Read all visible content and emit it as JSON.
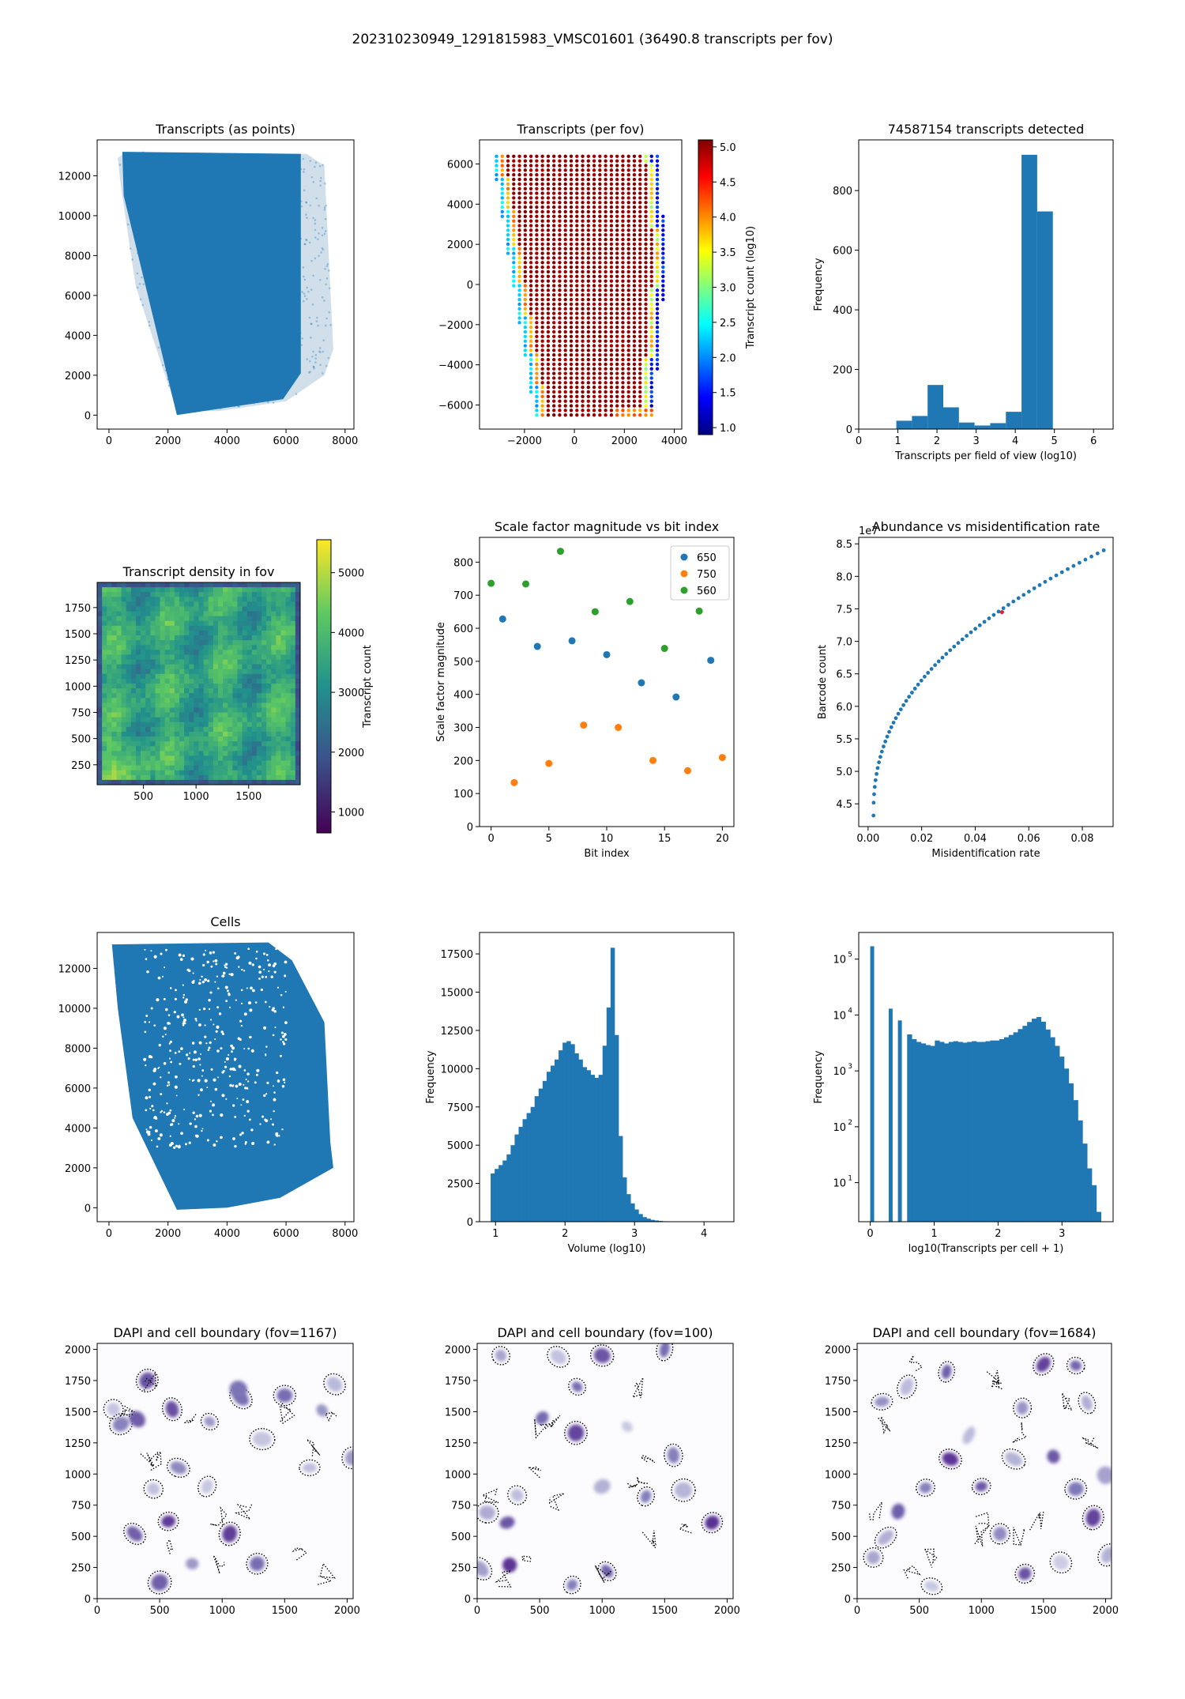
{
  "suptitle": "202310230949_1291815983_VMSC01601 (36490.8 transcripts per fov)",
  "colors": {
    "blue": "#1f77b4",
    "orange": "#ff7f0e",
    "green": "#2ca02c",
    "red": "#d62728",
    "viridis": [
      "#440154",
      "#3b528b",
      "#21918c",
      "#5ec962",
      "#fde725"
    ],
    "jet": [
      "#00007f",
      "#0000ff",
      "#007fff",
      "#00ffff",
      "#7fff7f",
      "#ffff00",
      "#ff7f00",
      "#ff0000",
      "#7f0000"
    ],
    "purples": [
      "#fcfbfd",
      "#efedf5",
      "#dadaeb",
      "#bcbddc",
      "#9e9ac8",
      "#807dba",
      "#6a51a3",
      "#54278f",
      "#3f007d"
    ]
  },
  "chart_data": [
    {
      "id": "points",
      "type": "scatter",
      "title": "Transcripts (as points)",
      "xlabel": "",
      "ylabel": "",
      "xlim": [
        -400,
        8300
      ],
      "ylim": [
        -700,
        13800
      ],
      "xticks": [
        0,
        2000,
        4000,
        6000,
        8000
      ],
      "yticks": [
        0,
        2000,
        4000,
        6000,
        8000,
        10000,
        12000
      ],
      "polygon": [
        [
          300,
          12900
        ],
        [
          600,
          13200
        ],
        [
          6700,
          13100
        ],
        [
          7300,
          12500
        ],
        [
          7600,
          3300
        ],
        [
          7300,
          2000
        ],
        [
          6000,
          700
        ],
        [
          3700,
          200
        ],
        [
          2300,
          200
        ],
        [
          900,
          6500
        ],
        [
          400,
          11500
        ]
      ],
      "dense_polygon": [
        [
          450,
          13200
        ],
        [
          6500,
          13100
        ],
        [
          6500,
          2100
        ],
        [
          5900,
          800
        ],
        [
          2300,
          0
        ],
        [
          500,
          11000
        ]
      ]
    },
    {
      "id": "perfov",
      "type": "scatter",
      "title": "Transcripts (per fov)",
      "xlabel": "",
      "ylabel": "",
      "colorbar_label": "Transcript count (log10)",
      "xlim": [
        -3800,
        4300
      ],
      "ylim": [
        -7200,
        7200
      ],
      "xticks": [
        -2000,
        0,
        2000,
        4000
      ],
      "yticks": [
        -6000,
        -4000,
        -2000,
        0,
        2000,
        4000,
        6000
      ],
      "clim": [
        0.9,
        5.1
      ],
      "cticks": [
        1.0,
        1.5,
        2.0,
        2.5,
        3.0,
        3.5,
        4.0,
        4.5,
        5.0
      ]
    },
    {
      "id": "hist_fov",
      "type": "bar",
      "title": "74587154 transcripts detected",
      "xlabel": "Transcripts per field of view (log10)",
      "ylabel": "Frequency",
      "xlim": [
        0,
        6.5
      ],
      "ylim": [
        0,
        970
      ],
      "xticks": [
        0,
        1,
        2,
        3,
        4,
        5,
        6
      ],
      "yticks": [
        0,
        200,
        400,
        600,
        800
      ],
      "bin_edges": [
        0.96,
        1.36,
        1.76,
        2.16,
        2.56,
        2.96,
        3.36,
        3.76,
        4.16,
        4.56,
        4.96
      ],
      "values": [
        28,
        44,
        148,
        73,
        22,
        12,
        20,
        58,
        920,
        730
      ]
    },
    {
      "id": "density",
      "type": "heatmap",
      "title": "Transcript density in fov",
      "xlabel": "",
      "ylabel": "",
      "colorbar_label": "Transcript count",
      "xlim": [
        60,
        1990
      ],
      "ylim": [
        60,
        1990
      ],
      "xticks": [
        500,
        1000,
        1500
      ],
      "yticks": [
        250,
        500,
        750,
        1000,
        1250,
        1500,
        1750
      ],
      "clim": [
        650,
        5550
      ],
      "cticks": [
        1000,
        2000,
        3000,
        4000,
        5000
      ]
    },
    {
      "id": "scale",
      "type": "scatter",
      "title": "Scale factor magnitude vs bit index",
      "xlabel": "Bit index",
      "ylabel": "Scale factor magnitude",
      "xlim": [
        -1,
        21
      ],
      "ylim": [
        0,
        875
      ],
      "xticks": [
        0,
        5,
        10,
        15,
        20
      ],
      "yticks": [
        0,
        100,
        200,
        300,
        400,
        500,
        600,
        700,
        800
      ],
      "legend_loc": "upper right",
      "series": [
        {
          "name": "650",
          "x": [
            1,
            4,
            7,
            10,
            13,
            16,
            19
          ],
          "y": [
            628,
            545,
            562,
            520,
            435,
            392,
            503
          ]
        },
        {
          "name": "750",
          "x": [
            2,
            5,
            8,
            11,
            14,
            17,
            20
          ],
          "y": [
            133,
            191,
            307,
            300,
            200,
            169,
            209
          ]
        },
        {
          "name": "560",
          "x": [
            0,
            3,
            6,
            9,
            12,
            15,
            18
          ],
          "y": [
            736,
            734,
            833,
            650,
            681,
            539,
            652
          ]
        }
      ]
    },
    {
      "id": "abundance",
      "type": "scatter",
      "title": "Abundance vs misidentification rate",
      "xlabel": "Misidentification rate",
      "ylabel": "Barcode count",
      "offset_label": "1e7",
      "xlim": [
        -0.0035,
        0.0915
      ],
      "ylim": [
        4.15,
        8.6
      ],
      "xticks": [
        0.0,
        0.02,
        0.04,
        0.06,
        0.08
      ],
      "xticklabels": [
        "0.00",
        "0.02",
        "0.04",
        "0.06",
        "0.08"
      ],
      "yticks": [
        4.5,
        5.0,
        5.5,
        6.0,
        6.5,
        7.0,
        7.5,
        8.0,
        8.5
      ],
      "highlight": [
        0.05,
        7.45
      ]
    },
    {
      "id": "cells",
      "type": "scatter",
      "title": "Cells",
      "xlabel": "",
      "ylabel": "",
      "xlim": [
        -400,
        8300
      ],
      "ylim": [
        -700,
        13800
      ],
      "xticks": [
        0,
        2000,
        4000,
        6000,
        8000
      ],
      "yticks": [
        0,
        2000,
        4000,
        6000,
        8000,
        10000,
        12000
      ],
      "polygon": [
        [
          100,
          13200
        ],
        [
          5400,
          13300
        ],
        [
          6200,
          12400
        ],
        [
          7300,
          9300
        ],
        [
          7500,
          3300
        ],
        [
          7600,
          2000
        ],
        [
          5800,
          500
        ],
        [
          4000,
          0
        ],
        [
          2300,
          -100
        ],
        [
          800,
          4500
        ],
        [
          300,
          10000
        ]
      ]
    },
    {
      "id": "volume",
      "type": "bar",
      "title": "",
      "xlabel": "Volume (log10)",
      "ylabel": "Frequency",
      "xlim": [
        0.77,
        4.43
      ],
      "ylim": [
        0,
        18900
      ],
      "xticks": [
        1,
        2,
        3,
        4
      ],
      "yticks": [
        0,
        2500,
        5000,
        7500,
        10000,
        12500,
        15000,
        17500
      ],
      "bin_start": 0.93,
      "bin_width": 0.0575,
      "values": [
        3150,
        3450,
        3700,
        4000,
        4400,
        5000,
        5700,
        6200,
        6700,
        7100,
        7500,
        8200,
        8700,
        9200,
        9800,
        10200,
        10600,
        11200,
        11700,
        11800,
        11600,
        11000,
        10600,
        10100,
        9900,
        9600,
        9400,
        9600,
        11500,
        14000,
        17900,
        12200,
        5600,
        2900,
        1800,
        1200,
        800,
        500,
        300,
        200,
        120,
        80,
        50,
        30,
        20,
        10
      ]
    },
    {
      "id": "tpc",
      "type": "bar",
      "title": "",
      "xlabel": "log10(Transcripts per cell + 1)",
      "ylabel": "Frequency",
      "log_y": true,
      "xlim": [
        -0.18,
        3.8
      ],
      "ylim": [
        2,
        300000
      ],
      "xticks": [
        0,
        1,
        2,
        3
      ],
      "yticks": [
        10,
        100,
        1000,
        10000,
        100000
      ],
      "bin_start": 0,
      "bin_width": 0.0722,
      "values": [
        170000,
        0,
        0,
        0,
        13000,
        0,
        8000,
        0,
        4500,
        3700,
        3300,
        3100,
        2900,
        2800,
        3500,
        3300,
        3100,
        3300,
        3400,
        3300,
        3200,
        3300,
        3400,
        3300,
        3300,
        3400,
        3500,
        3500,
        3700,
        4000,
        4400,
        4900,
        5600,
        6400,
        7500,
        8600,
        9200,
        7600,
        5500,
        4000,
        2800,
        1800,
        1100,
        600,
        300,
        130,
        50,
        18,
        9,
        3
      ]
    },
    {
      "id": "dapi1167",
      "type": "scatter",
      "title": "DAPI and cell boundary (fov=1167)",
      "xlim": [
        0,
        2048
      ],
      "ylim": [
        0,
        2048
      ],
      "xticks": [
        0,
        500,
        1000,
        1500,
        2000
      ],
      "yticks": [
        0,
        250,
        500,
        750,
        1000,
        1250,
        1500,
        1750,
        2000
      ],
      "nuclei": [
        [
          130,
          1520
        ],
        [
          400,
          1750
        ],
        [
          600,
          1520
        ],
        [
          900,
          1420
        ],
        [
          1150,
          1610
        ],
        [
          1500,
          1630
        ],
        [
          1800,
          1510
        ],
        [
          1900,
          1720
        ],
        [
          650,
          1050
        ],
        [
          450,
          880
        ],
        [
          300,
          520
        ],
        [
          570,
          620
        ],
        [
          760,
          280
        ],
        [
          1280,
          280
        ],
        [
          1060,
          520
        ],
        [
          1320,
          1280
        ],
        [
          1700,
          1050
        ],
        [
          2040,
          1130
        ],
        [
          500,
          130
        ],
        [
          880,
          900
        ],
        [
          190,
          1400
        ],
        [
          1130,
          1680
        ],
        [
          320,
          1440
        ]
      ]
    },
    {
      "id": "dapi100",
      "type": "scatter",
      "title": "DAPI and cell boundary (fov=100)",
      "xlim": [
        0,
        2048
      ],
      "ylim": [
        0,
        2048
      ],
      "xticks": [
        0,
        500,
        1000,
        1500,
        2000
      ],
      "yticks": [
        0,
        250,
        500,
        750,
        1000,
        1250,
        1500,
        1750,
        2000
      ],
      "nuclei": [
        [
          190,
          1950
        ],
        [
          520,
          1450
        ],
        [
          790,
          1330
        ],
        [
          1200,
          1380
        ],
        [
          1570,
          1150
        ],
        [
          1000,
          900
        ],
        [
          800,
          1700
        ],
        [
          1500,
          2000
        ],
        [
          320,
          830
        ],
        [
          260,
          270
        ],
        [
          80,
          690
        ],
        [
          240,
          610
        ],
        [
          760,
          110
        ],
        [
          1040,
          220
        ],
        [
          1880,
          610
        ],
        [
          1650,
          870
        ],
        [
          650,
          1940
        ],
        [
          1000,
          1950
        ],
        [
          30,
          240
        ],
        [
          1350,
          820
        ]
      ]
    },
    {
      "id": "dapi1684",
      "type": "scatter",
      "title": "DAPI and cell boundary (fov=1684)",
      "xlim": [
        0,
        2048
      ],
      "ylim": [
        0,
        2048
      ],
      "xticks": [
        0,
        500,
        1000,
        1500,
        2000
      ],
      "yticks": [
        0,
        250,
        500,
        750,
        1000,
        1250,
        1500,
        1750,
        2000
      ],
      "nuclei": [
        [
          200,
          1580
        ],
        [
          720,
          1820
        ],
        [
          1500,
          1880
        ],
        [
          1760,
          1870
        ],
        [
          900,
          1310
        ],
        [
          1260,
          1120
        ],
        [
          1000,
          900
        ],
        [
          550,
          890
        ],
        [
          330,
          700
        ],
        [
          750,
          1120
        ],
        [
          1150,
          520
        ],
        [
          1580,
          1140
        ],
        [
          1760,
          880
        ],
        [
          2000,
          990
        ],
        [
          230,
          490
        ],
        [
          600,
          100
        ],
        [
          1350,
          200
        ],
        [
          1900,
          650
        ],
        [
          130,
          330
        ],
        [
          1640,
          290
        ],
        [
          2020,
          350
        ],
        [
          1330,
          1530
        ],
        [
          400,
          1700
        ],
        [
          1850,
          1570
        ]
      ]
    }
  ]
}
